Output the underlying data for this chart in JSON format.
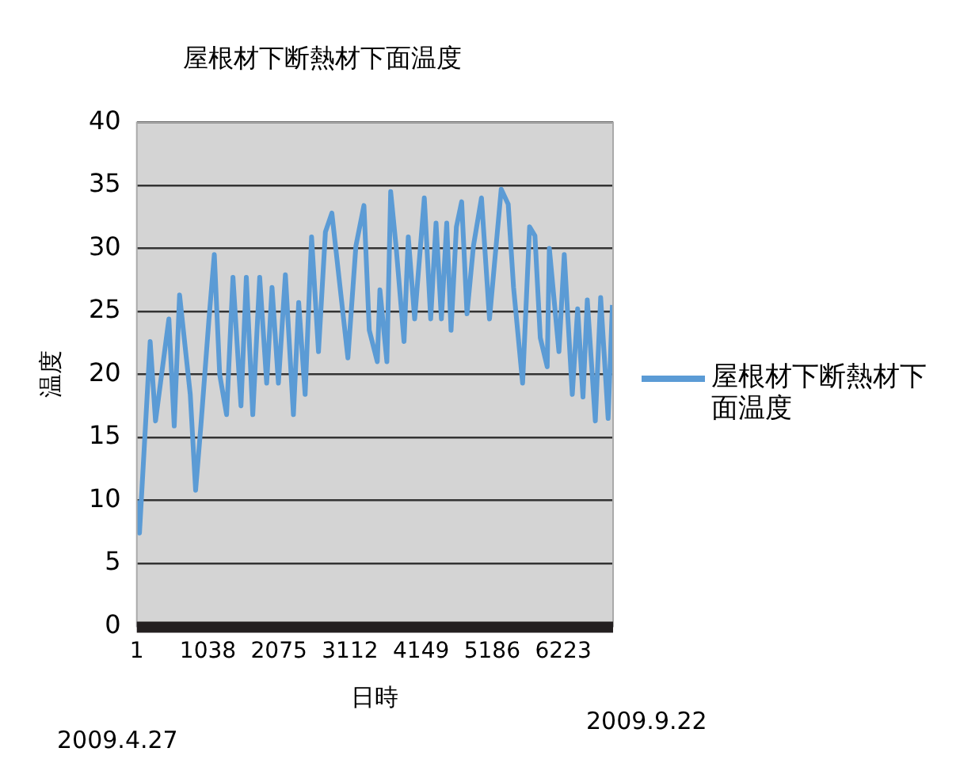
{
  "chart_data": {
    "type": "line",
    "title": "屋根材下断熱材下面温度",
    "xlabel": "日時",
    "ylabel": "温度",
    "xlim": [
      1,
      6950
    ],
    "xticks": [
      1,
      1038,
      2075,
      3112,
      4149,
      5186,
      6223
    ],
    "ylim": [
      0,
      40
    ],
    "yticks": [
      0,
      5,
      10,
      15,
      20,
      25,
      30,
      35,
      40
    ],
    "grid": "y",
    "legend": "right",
    "marker": "none",
    "line_style": "solid",
    "annotations": [
      "2009.4.27",
      "2009.9.22"
    ],
    "series": [
      {
        "name": "屋根材下断熱材下面温度",
        "color": "#5b9bd5",
        "x": [
          1,
          40,
          196,
          274,
          469,
          547,
          625,
          781,
          859,
          937,
          1054,
          1132,
          1210,
          1311,
          1404,
          1521,
          1599,
          1693,
          1794,
          1896,
          1974,
          2067,
          2169,
          2286,
          2363,
          2457,
          2551,
          2652,
          2753,
          2847,
          3081,
          3198,
          3315,
          3393,
          3510,
          3548,
          3650,
          3705,
          3783,
          3900,
          3962,
          4055,
          4196,
          4289,
          4367,
          4445,
          4523,
          4586,
          4664,
          4741,
          4819,
          4913,
          5030,
          5147,
          5318,
          5420,
          5498,
          5630,
          5732,
          5810,
          5888,
          5989,
          6020,
          6160,
          6238,
          6355,
          6433,
          6511,
          6574,
          6691,
          6769,
          6878,
          6940
        ],
        "values": [
          10,
          7.4,
          22.6,
          16.3,
          24.4,
          15.9,
          26.3,
          18.4,
          10.8,
          16,
          24.4,
          29.5,
          20,
          16.8,
          27.7,
          17.5,
          27.7,
          16.8,
          27.7,
          19.3,
          26.9,
          19.3,
          27.9,
          16.8,
          25.7,
          18.4,
          30.9,
          21.8,
          31.3,
          32.8,
          21.3,
          30.2,
          33.4,
          23.5,
          21,
          26.7,
          21,
          34.5,
          30.2,
          22.6,
          30.9,
          24.4,
          34,
          24.4,
          32,
          24.4,
          32,
          23.5,
          31.7,
          33.7,
          24.8,
          30.2,
          34,
          24.4,
          34.7,
          33.5,
          26.9,
          19.3,
          31.7,
          31,
          22.9,
          20.6,
          30,
          21.8,
          29.5,
          18.4,
          25.2,
          18.2,
          25.9,
          16.3,
          26.1,
          16.5,
          25.5
        ]
      }
    ]
  }
}
